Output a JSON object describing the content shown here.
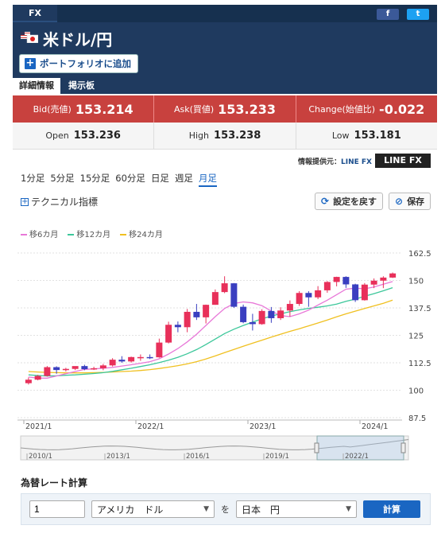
{
  "header": {
    "tab_label": "FX",
    "social": {
      "facebook": "f",
      "twitter": "t"
    },
    "pair_title": "米ドル/円",
    "portfolio_button": "ポートフォリオに追加",
    "tabs": [
      "詳細情報",
      "掲示板"
    ]
  },
  "quotes": {
    "bid_label": "Bid(売値)",
    "bid_value": "153.214",
    "ask_label": "Ask(買値)",
    "ask_value": "153.233",
    "change_label": "Change(始値比)",
    "change_value": "-0.022",
    "open_label": "Open",
    "open_value": "153.236",
    "high_label": "High",
    "high_value": "153.238",
    "low_label": "Low",
    "low_value": "153.181"
  },
  "provider": {
    "label": "情報提供元：",
    "source": "LINE FX",
    "logo_text": "LINE FX"
  },
  "periods": [
    "1分足",
    "5分足",
    "15分足",
    "60分足",
    "日足",
    "週足",
    "月足"
  ],
  "selected_period": "月足",
  "toolbar": {
    "technical_label": "テクニカル指標",
    "reset_label": "設定を戻す",
    "save_label": "保存"
  },
  "legend": [
    {
      "name": "移6カ月",
      "color": "#e878d8"
    },
    {
      "name": "移12カ月",
      "color": "#3cc79a"
    },
    {
      "name": "移24カ月",
      "color": "#f0c020"
    }
  ],
  "colors": {
    "up": "#e8305a",
    "down": "#3a3fc0",
    "header": "#1f3a5f",
    "quote": "#c8413e"
  },
  "chart_data": {
    "type": "candlestick",
    "y_ticks": [
      87.5,
      100,
      112.5,
      125,
      137.5,
      150,
      162.5
    ],
    "ylim": [
      87.5,
      162.5
    ],
    "x_ticks": [
      "2021/1",
      "2022/1",
      "2023/1",
      "2024/1"
    ],
    "candles": [
      {
        "o": 103.2,
        "h": 105.8,
        "l": 102.6,
        "c": 104.8
      },
      {
        "o": 104.8,
        "h": 107.0,
        "l": 104.5,
        "c": 106.5
      },
      {
        "o": 106.5,
        "h": 111.0,
        "l": 106.2,
        "c": 110.5
      },
      {
        "o": 110.5,
        "h": 110.9,
        "l": 107.5,
        "c": 109.2
      },
      {
        "o": 109.2,
        "h": 110.2,
        "l": 108.5,
        "c": 109.7
      },
      {
        "o": 109.7,
        "h": 110.8,
        "l": 109.2,
        "c": 111.0
      },
      {
        "o": 111.0,
        "h": 111.6,
        "l": 109.1,
        "c": 109.6
      },
      {
        "o": 109.6,
        "h": 110.7,
        "l": 109.2,
        "c": 110.0
      },
      {
        "o": 110.0,
        "h": 112.0,
        "l": 109.1,
        "c": 111.3
      },
      {
        "o": 111.3,
        "h": 114.6,
        "l": 110.8,
        "c": 113.9
      },
      {
        "o": 113.9,
        "h": 115.5,
        "l": 112.5,
        "c": 113.1
      },
      {
        "o": 113.1,
        "h": 115.3,
        "l": 112.6,
        "c": 115.1
      },
      {
        "o": 115.1,
        "h": 116.3,
        "l": 113.4,
        "c": 115.1
      },
      {
        "o": 115.1,
        "h": 116.3,
        "l": 114.2,
        "c": 115.0
      },
      {
        "o": 115.0,
        "h": 123.5,
        "l": 114.8,
        "c": 121.7
      },
      {
        "o": 121.7,
        "h": 131.2,
        "l": 121.3,
        "c": 129.8
      },
      {
        "o": 129.8,
        "h": 131.3,
        "l": 126.4,
        "c": 128.7
      },
      {
        "o": 128.7,
        "h": 137.0,
        "l": 126.4,
        "c": 135.7
      },
      {
        "o": 135.7,
        "h": 139.3,
        "l": 132.0,
        "c": 133.2
      },
      {
        "o": 133.2,
        "h": 139.0,
        "l": 130.4,
        "c": 138.9
      },
      {
        "o": 138.9,
        "h": 145.9,
        "l": 138.9,
        "c": 144.7
      },
      {
        "o": 144.7,
        "h": 151.9,
        "l": 144.2,
        "c": 148.7
      },
      {
        "o": 148.7,
        "h": 148.8,
        "l": 137.5,
        "c": 138.0
      },
      {
        "o": 138.0,
        "h": 139.0,
        "l": 130.5,
        "c": 131.0
      },
      {
        "o": 131.0,
        "h": 134.8,
        "l": 127.2,
        "c": 130.1
      },
      {
        "o": 130.1,
        "h": 136.9,
        "l": 129.8,
        "c": 136.1
      },
      {
        "o": 136.1,
        "h": 137.9,
        "l": 130.7,
        "c": 132.8
      },
      {
        "o": 132.8,
        "h": 137.8,
        "l": 132.0,
        "c": 136.3
      },
      {
        "o": 136.3,
        "h": 140.9,
        "l": 133.5,
        "c": 139.3
      },
      {
        "o": 139.3,
        "h": 145.1,
        "l": 138.4,
        "c": 144.3
      },
      {
        "o": 144.3,
        "h": 145.1,
        "l": 138.0,
        "c": 142.3
      },
      {
        "o": 142.3,
        "h": 147.4,
        "l": 141.5,
        "c": 145.5
      },
      {
        "o": 145.5,
        "h": 149.7,
        "l": 144.4,
        "c": 149.3
      },
      {
        "o": 149.3,
        "h": 151.7,
        "l": 147.3,
        "c": 151.6
      },
      {
        "o": 151.6,
        "h": 151.9,
        "l": 146.6,
        "c": 148.2
      },
      {
        "o": 148.2,
        "h": 148.5,
        "l": 140.2,
        "c": 141.0
      },
      {
        "o": 141.0,
        "h": 148.8,
        "l": 140.8,
        "c": 148.1
      },
      {
        "o": 148.1,
        "h": 150.9,
        "l": 146.5,
        "c": 149.9
      },
      {
        "o": 149.9,
        "h": 151.9,
        "l": 146.5,
        "c": 151.3
      },
      {
        "o": 151.3,
        "h": 153.6,
        "l": 151.1,
        "c": 153.2
      }
    ],
    "ma6": [
      106.0,
      105.5,
      105.5,
      106.5,
      107.5,
      108.5,
      109.5,
      109.7,
      110.0,
      110.4,
      111.0,
      111.6,
      112.3,
      113.0,
      114.3,
      116.5,
      119.0,
      122.0,
      125.5,
      129.5,
      133.5,
      137.2,
      139.5,
      140.2,
      139.8,
      138.5,
      136.0,
      134.0,
      133.5,
      134.8,
      136.5,
      138.8,
      141.0,
      143.5,
      146.0,
      146.5,
      146.2,
      147.0,
      148.3,
      149.5
    ],
    "ma12": [
      107.0,
      106.7,
      106.5,
      106.6,
      106.8,
      107.0,
      107.3,
      107.6,
      108.0,
      108.6,
      109.3,
      110.0,
      110.8,
      111.6,
      112.6,
      113.7,
      115.0,
      116.6,
      118.5,
      120.8,
      123.3,
      125.8,
      127.8,
      129.5,
      131.0,
      132.5,
      133.8,
      134.8,
      135.8,
      136.6,
      137.3,
      137.8,
      138.4,
      139.2,
      140.5,
      141.5,
      142.8,
      144.0,
      145.3,
      146.7
    ],
    "ma24": [
      108.5,
      108.3,
      108.1,
      108.0,
      107.9,
      107.9,
      107.9,
      108.0,
      108.1,
      108.3,
      108.5,
      108.7,
      109.0,
      109.4,
      109.9,
      110.5,
      111.2,
      112.0,
      113.0,
      114.2,
      115.6,
      117.1,
      118.6,
      120.0,
      121.4,
      122.8,
      124.2,
      125.5,
      126.8,
      128.0,
      129.3,
      130.6,
      132.0,
      133.4,
      134.8,
      136.0,
      137.2,
      138.4,
      139.6,
      141.0
    ],
    "navigator": {
      "x_ticks": [
        "2010/1",
        "2013/1",
        "2016/1",
        "2019/1",
        "2022/1"
      ]
    }
  },
  "calculator": {
    "title": "為替レート計算",
    "amount": "1",
    "from_currency": "アメリカ　ドル",
    "connector": "を",
    "to_currency": "日本　円",
    "button": "計算"
  }
}
